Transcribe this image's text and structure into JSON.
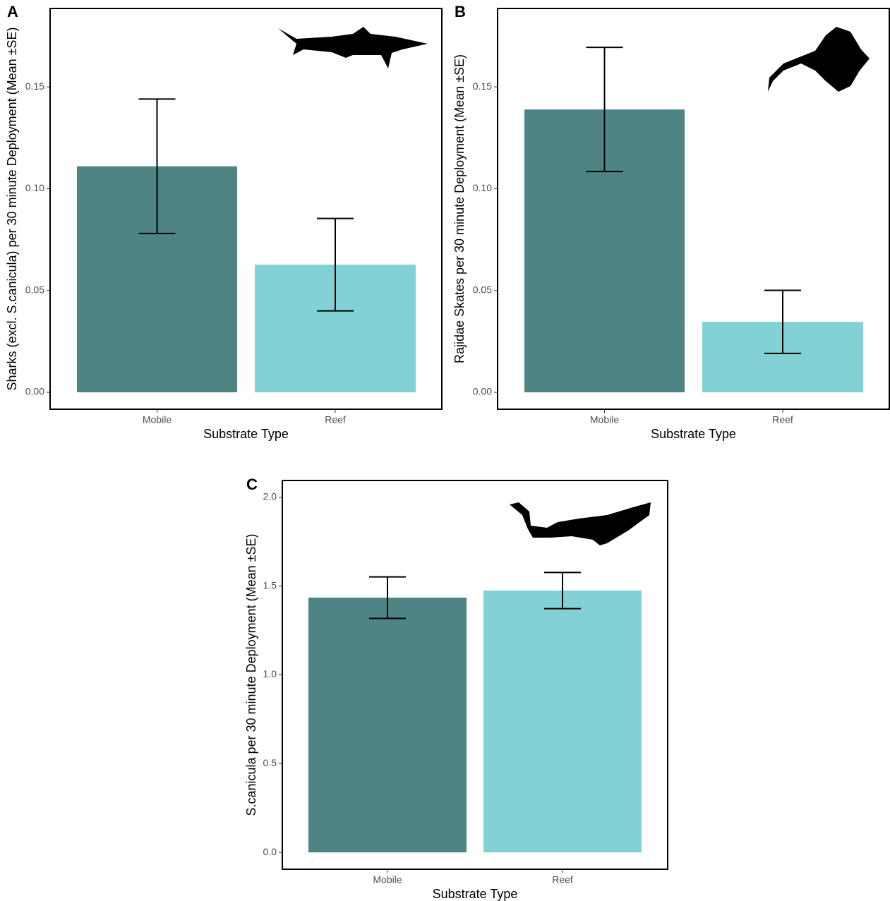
{
  "chart_data": [
    {
      "type": "bar",
      "panel": "A",
      "x_label": "Substrate Type",
      "y_label": "Sharks (excl. S.canicula) per 30 minute Deployment (Mean ±SE)",
      "categories": [
        "Mobile",
        "Reef"
      ],
      "values": [
        0.111,
        0.0627
      ],
      "errors": [
        0.033,
        0.0227
      ],
      "colors": [
        "#4e8584",
        "#82d1d5"
      ],
      "ylim": [
        -0.0083,
        0.1885
      ],
      "yticks": [
        {
          "value": 0,
          "label": "0.00"
        },
        {
          "value": 0.05,
          "label": "0.05"
        },
        {
          "value": 0.1,
          "label": "0.10"
        },
        {
          "value": 0.15,
          "label": "0.15"
        }
      ]
    },
    {
      "type": "bar",
      "panel": "B",
      "x_label": "Substrate Type",
      "y_label": "Rajidae Skates per 30 minute Deployment (Mean ±SE)",
      "categories": [
        "Mobile",
        "Reef"
      ],
      "values": [
        0.1389,
        0.0346
      ],
      "errors": [
        0.0305,
        0.0155
      ],
      "colors": [
        "#4e8584",
        "#82d1d5"
      ],
      "ylim": [
        -0.0083,
        0.1885
      ],
      "yticks": [
        {
          "value": 0,
          "label": "0.00"
        },
        {
          "value": 0.05,
          "label": "0.05"
        },
        {
          "value": 0.1,
          "label": "0.10"
        },
        {
          "value": 0.15,
          "label": "0.15"
        }
      ]
    },
    {
      "type": "bar",
      "panel": "C",
      "x_label": "Substrate Type",
      "y_label": "S.canicula per 30 minute Deployment (Mean ±SE)",
      "categories": [
        "Mobile",
        "Reef"
      ],
      "values": [
        1.435,
        1.475
      ],
      "errors": [
        0.117,
        0.102
      ],
      "colors": [
        "#4e8584",
        "#82d1d5"
      ],
      "ylim": [
        -0.095,
        2.095
      ],
      "yticks": [
        {
          "value": 0,
          "label": "0.0"
        },
        {
          "value": 0.5,
          "label": "0.5"
        },
        {
          "value": 1,
          "label": "1.0"
        },
        {
          "value": 1.5,
          "label": "1.5"
        },
        {
          "value": 2,
          "label": "2.0"
        }
      ]
    }
  ]
}
